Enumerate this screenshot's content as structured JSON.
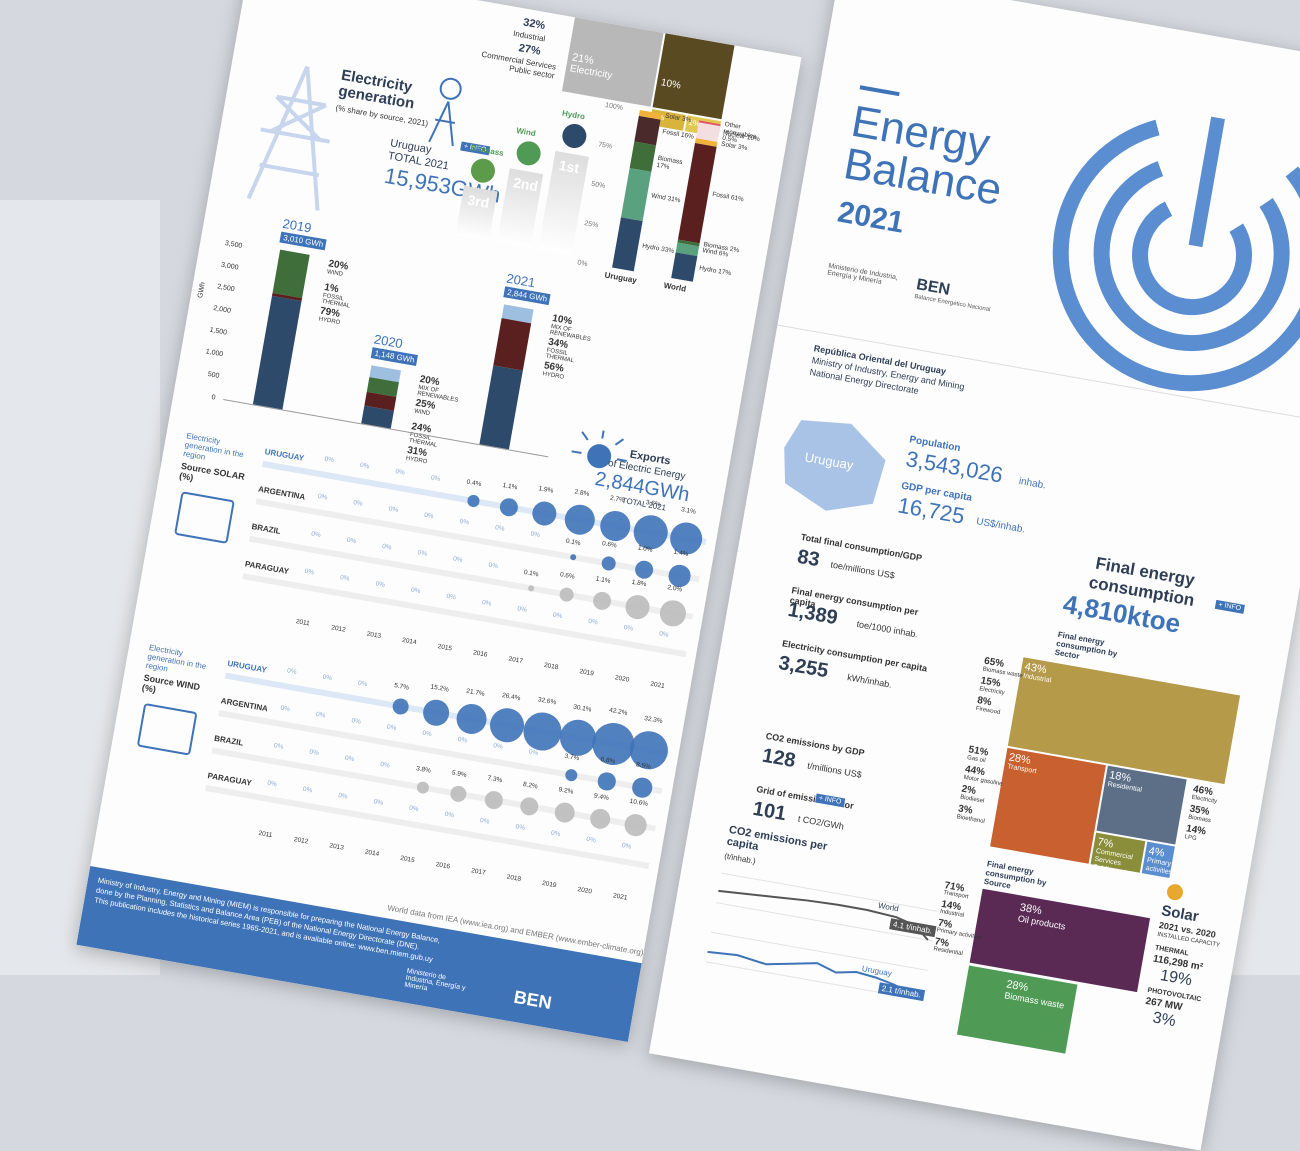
{
  "left_page": {
    "top_strip": {
      "industrial_pct": "32%",
      "industrial": "Industrial",
      "commercial_pct": "27%",
      "commercial": "Commercial Services Public sector",
      "electricity_pct": "21%",
      "electricity": "Electricity",
      "other_pct": "10%",
      "small_a": "2%",
      "small_b": "1%"
    },
    "generation": {
      "title": "Electricity generation",
      "subtitle": "(% share by source, 2021)",
      "info": "+ INFO",
      "country": "Uruguay",
      "total_label": "TOTAL 2021",
      "total": "15,953GWh",
      "podium": [
        {
          "name": "Biomass",
          "rank": "3rd"
        },
        {
          "name": "Wind",
          "rank": "2nd"
        },
        {
          "name": "Hydro",
          "rank": "1st"
        }
      ],
      "axis": [
        "100%",
        "75%",
        "50%",
        "25%",
        "0%"
      ],
      "uruguay": {
        "name": "Uruguay",
        "labels": [
          "Solar 3%",
          "Fossil 16%",
          "Biomass 17%",
          "Wind 31%",
          "Hydro 33%"
        ]
      },
      "world": {
        "name": "World",
        "labels": [
          "Other renewables 0.5%",
          "Nuclear 10%",
          "Solar 3%",
          "Fossil 61%",
          "Biomass 2%",
          "Wind 6%",
          "Hydro 17%"
        ]
      }
    },
    "years": {
      "unit": "GWh",
      "ticks": [
        "3,500",
        "3,000",
        "2,500",
        "2,000",
        "1,500",
        "1,000",
        "500",
        "0"
      ],
      "bars": [
        {
          "year": "2019",
          "total": "3,010 GWh",
          "shares": [
            [
              "20%",
              "WIND"
            ],
            [
              "1%",
              "FOSSIL THERMAL"
            ],
            [
              "79%",
              "HYDRO"
            ]
          ]
        },
        {
          "year": "2020",
          "total": "1,148 GWh",
          "shares": [
            [
              "20%",
              "MIX OF RENEWABLES"
            ],
            [
              "25%",
              "WIND"
            ],
            [
              "24%",
              "FOSSIL THERMAL"
            ],
            [
              "31%",
              "HYDRO"
            ]
          ]
        },
        {
          "year": "2021",
          "total": "2,844 GWh",
          "shares": [
            [
              "10%",
              "MIX OF RENEWABLES"
            ],
            [
              "34%",
              "FOSSIL THERMAL"
            ],
            [
              "56%",
              "HYDRO"
            ]
          ]
        }
      ]
    },
    "exports": {
      "title": "Exports",
      "subtitle": "of Electric Energy",
      "value": "2,844GWh",
      "total": "TOTAL 2021"
    },
    "tables": [
      {
        "title": "Electricity generation in the region",
        "source": "Source SOLAR (%)",
        "years": [
          "2011",
          "2012",
          "2013",
          "2014",
          "2015",
          "2016",
          "2017",
          "2018",
          "2019",
          "2020",
          "2021"
        ],
        "rows": [
          {
            "country": "URUGUAY",
            "values": [
              "0%",
              "0%",
              "0%",
              "0%",
              "0.4%",
              "1.1%",
              "1.9%",
              "2.8%",
              "2.7%",
              "3.6%",
              "3.1%"
            ]
          },
          {
            "country": "ARGENTINA",
            "values": [
              "0%",
              "0%",
              "0%",
              "0%",
              "0%",
              "0%",
              "0%",
              "0.1%",
              "0.6%",
              "1.0%",
              "1.4%"
            ]
          },
          {
            "country": "BRAZIL",
            "values": [
              "0%",
              "0%",
              "0%",
              "0%",
              "0%",
              "0%",
              "0.1%",
              "0.6%",
              "1.1%",
              "1.8%",
              "2.0%"
            ]
          },
          {
            "country": "PARAGUAY",
            "values": [
              "0%",
              "0%",
              "0%",
              "0%",
              "0%",
              "0%",
              "0%",
              "0%",
              "0%",
              "0%",
              "0%"
            ]
          }
        ]
      },
      {
        "title": "Electricity generation in the region",
        "source": "Source WIND (%)",
        "years": [
          "2011",
          "2012",
          "2013",
          "2014",
          "2015",
          "2016",
          "2017",
          "2018",
          "2019",
          "2020",
          "2021"
        ],
        "rows": [
          {
            "country": "URUGUAY",
            "values": [
              "0%",
              "0%",
              "0%",
              "5.7%",
              "15.2%",
              "21.7%",
              "26.4%",
              "32.6%",
              "30.1%",
              "42.2%",
              "32.3%"
            ]
          },
          {
            "country": "ARGENTINA",
            "values": [
              "0%",
              "0%",
              "0%",
              "0%",
              "0%",
              "0%",
              "0%",
              "0%",
              "3.7%",
              "6.8%",
              "8.5%"
            ]
          },
          {
            "country": "BRAZIL",
            "values": [
              "0%",
              "0%",
              "0%",
              "0%",
              "3.8%",
              "5.9%",
              "7.3%",
              "8.2%",
              "9.2%",
              "9.4%",
              "10.6%"
            ]
          },
          {
            "country": "PARAGUAY",
            "values": [
              "0%",
              "0%",
              "0%",
              "0%",
              "0%",
              "0%",
              "0%",
              "0%",
              "0%",
              "0%",
              "0%"
            ]
          }
        ]
      }
    ],
    "source_note": "World data from IEA (www.iea.org) and EMBER (www.ember-climate.org).",
    "footer": [
      "Ministry of Industry, Energy and Mining (MIEM) is responsible for preparing the National Energy Balance,",
      "done by the Planning, Statistics and Balance Area (PEB) of the National Energy Directorate (DNE).",
      "This publication includes the historical series 1965-2021, and is available online: www.ben.miem.gub.uy"
    ],
    "logos": [
      "Ministerio de Industria, Energía y Minería",
      "BEN"
    ]
  },
  "right_page": {
    "title": [
      "Energy",
      "Balance"
    ],
    "year": "2021",
    "logos": [
      "Ministerio de Industria, Energía y Minería",
      "BEN",
      "Balance Energético Nacional"
    ],
    "institution": [
      "República Oriental del Uruguay",
      "Ministry of Industry, Energy and Mining",
      "National Energy Directorate"
    ],
    "map": "Uruguay",
    "population": {
      "label": "Population",
      "value": "3,543,026",
      "unit": "inhab."
    },
    "gdp": {
      "label": "GDP per capita",
      "value": "16,725",
      "unit": "US$/inhab."
    },
    "indicators": [
      {
        "label": "Total final consumption/GDP",
        "value": "83",
        "unit": "toe/millions US$"
      },
      {
        "label": "Final energy consumption per capita",
        "value": "1,389",
        "unit": "toe/1000 inhab."
      },
      {
        "label": "Electricity consumption per capita",
        "value": "3,255",
        "unit": "kWh/inhab."
      },
      {
        "label": "CO2 emissions by GDP",
        "value": "128",
        "unit": "t/millions US$"
      },
      {
        "label": "Grid of emission factor",
        "value": "101",
        "unit": "t CO2/GWh"
      }
    ],
    "info": "+ INFO",
    "co2": {
      "title": "CO2 emissions per capita",
      "unit": "(t/inhab.)",
      "world": "World",
      "world_value": "4.1 t/inhab.",
      "uruguay": "Uruguay",
      "uruguay_value": "2.1 t/inhab."
    },
    "final": {
      "title": "Final energy consumption",
      "value": "4,810ktoe",
      "by_sector": "Final energy consumption by Sector",
      "by_source": "Final energy consumption by Source",
      "sectors": [
        [
          "43%",
          "Industrial"
        ],
        [
          "28%",
          "Transport"
        ],
        [
          "18%",
          "Residential"
        ],
        [
          "7%",
          "Commercial Services Public sector"
        ],
        [
          "4%",
          "Primary activities"
        ]
      ],
      "industrial_mix": [
        [
          "65%",
          "Biomass waste"
        ],
        [
          "15%",
          "Electricity"
        ],
        [
          "8%",
          "Firewood"
        ]
      ],
      "transport_mix": [
        [
          "51%",
          "Gas oil"
        ],
        [
          "44%",
          "Motor gasoline"
        ],
        [
          "2%",
          "Biodiesel"
        ],
        [
          "3%",
          "Bioethanol"
        ]
      ],
      "residential_mix": [
        [
          "46%",
          "Electricity"
        ],
        [
          "35%",
          "Biomass"
        ],
        [
          "14%",
          "LPG"
        ]
      ],
      "sources": [
        [
          "38%",
          "Oil products"
        ],
        [
          "28%",
          "Biomass waste"
        ]
      ],
      "oil_mix": [
        [
          "71%",
          "Transport"
        ],
        [
          "14%",
          "Industrial"
        ],
        [
          "7%",
          "Primary activities"
        ],
        [
          "7%",
          "Residential"
        ]
      ]
    },
    "solar": {
      "title": "Solar",
      "compare": "2021 vs. 2020",
      "installed": "INSTALLED CAPACITY",
      "thermal": "THERMAL",
      "thermal_value": "116,298 m²",
      "thermal_change": "19%",
      "pv": "PHOTOVOLTAIC",
      "pv_value": "267 MW",
      "pv_change": "3%"
    }
  }
}
